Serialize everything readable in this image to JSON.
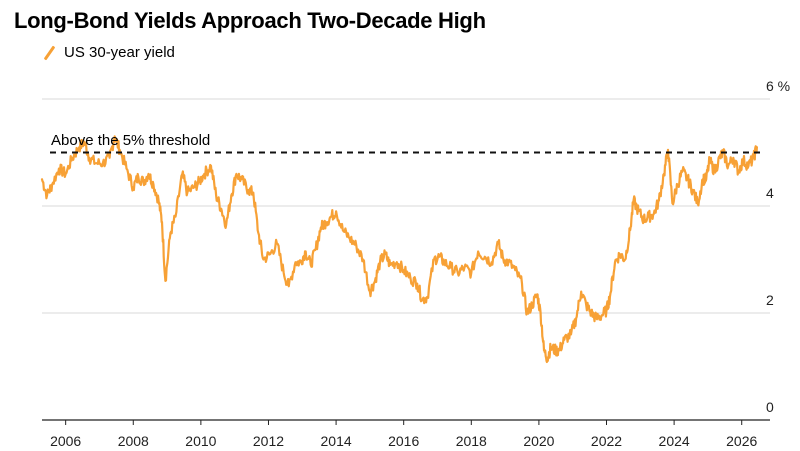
{
  "title": "Long-Bond Yields Approach Two-Decade High",
  "legend": {
    "label": "US 30-year yield",
    "color": "#f7a136"
  },
  "annotation": "Above the 5% threshold",
  "chart_data": {
    "type": "line",
    "title": "Long-Bond Yields Approach Two-Decade High",
    "xlabel": "",
    "ylabel": "",
    "unit": "%",
    "xlim": [
      2005.3,
      2026.6
    ],
    "ylim": [
      0,
      6
    ],
    "x_ticks": [
      "2006",
      "2008",
      "2010",
      "2012",
      "2014",
      "2016",
      "2018",
      "2020",
      "2022",
      "2024",
      "2026"
    ],
    "x_tick_values": [
      2006,
      2008,
      2010,
      2012,
      2014,
      2016,
      2018,
      2020,
      2022,
      2024,
      2026
    ],
    "y_ticks": [
      "6 %",
      "4",
      "2",
      "0"
    ],
    "y_tick_values": [
      6,
      4,
      2,
      0
    ],
    "grid": "horizontal",
    "reference_line": {
      "y": 5,
      "style": "dashed",
      "label": "Above the 5% threshold"
    },
    "series": [
      {
        "name": "US 30-year yield",
        "color": "#f7a136",
        "points": [
          [
            2005.3,
            4.5
          ],
          [
            2005.45,
            4.2
          ],
          [
            2005.6,
            4.4
          ],
          [
            2005.8,
            4.7
          ],
          [
            2006.0,
            4.6
          ],
          [
            2006.2,
            4.9
          ],
          [
            2006.4,
            5.1
          ],
          [
            2006.55,
            5.2
          ],
          [
            2006.7,
            4.9
          ],
          [
            2006.9,
            4.8
          ],
          [
            2007.1,
            4.8
          ],
          [
            2007.3,
            4.9
          ],
          [
            2007.45,
            5.3
          ],
          [
            2007.6,
            5.05
          ],
          [
            2007.8,
            4.7
          ],
          [
            2008.0,
            4.35
          ],
          [
            2008.15,
            4.55
          ],
          [
            2008.3,
            4.45
          ],
          [
            2008.45,
            4.6
          ],
          [
            2008.6,
            4.4
          ],
          [
            2008.75,
            4.1
          ],
          [
            2008.85,
            3.7
          ],
          [
            2008.95,
            2.6
          ],
          [
            2009.1,
            3.5
          ],
          [
            2009.25,
            3.8
          ],
          [
            2009.45,
            4.6
          ],
          [
            2009.6,
            4.25
          ],
          [
            2009.8,
            4.35
          ],
          [
            2009.95,
            4.45
          ],
          [
            2010.1,
            4.6
          ],
          [
            2010.3,
            4.75
          ],
          [
            2010.45,
            4.2
          ],
          [
            2010.6,
            3.95
          ],
          [
            2010.75,
            3.65
          ],
          [
            2010.9,
            4.2
          ],
          [
            2011.05,
            4.6
          ],
          [
            2011.2,
            4.5
          ],
          [
            2011.4,
            4.3
          ],
          [
            2011.55,
            4.25
          ],
          [
            2011.7,
            3.5
          ],
          [
            2011.85,
            3.0
          ],
          [
            2012.05,
            3.1
          ],
          [
            2012.25,
            3.3
          ],
          [
            2012.45,
            2.75
          ],
          [
            2012.6,
            2.5
          ],
          [
            2012.8,
            2.95
          ],
          [
            2012.95,
            2.95
          ],
          [
            2013.1,
            3.15
          ],
          [
            2013.25,
            2.9
          ],
          [
            2013.4,
            3.2
          ],
          [
            2013.55,
            3.6
          ],
          [
            2013.7,
            3.7
          ],
          [
            2013.85,
            3.8
          ],
          [
            2014.0,
            3.9
          ],
          [
            2014.2,
            3.55
          ],
          [
            2014.4,
            3.4
          ],
          [
            2014.6,
            3.25
          ],
          [
            2014.8,
            3.0
          ],
          [
            2015.0,
            2.4
          ],
          [
            2015.15,
            2.6
          ],
          [
            2015.3,
            2.95
          ],
          [
            2015.45,
            3.1
          ],
          [
            2015.6,
            2.9
          ],
          [
            2015.8,
            2.95
          ],
          [
            2016.0,
            2.8
          ],
          [
            2016.2,
            2.65
          ],
          [
            2016.4,
            2.55
          ],
          [
            2016.55,
            2.25
          ],
          [
            2016.7,
            2.3
          ],
          [
            2016.9,
            3.0
          ],
          [
            2017.05,
            3.05
          ],
          [
            2017.2,
            2.95
          ],
          [
            2017.4,
            2.85
          ],
          [
            2017.6,
            2.75
          ],
          [
            2017.8,
            2.85
          ],
          [
            2018.0,
            2.75
          ],
          [
            2018.2,
            3.15
          ],
          [
            2018.4,
            3.05
          ],
          [
            2018.6,
            2.95
          ],
          [
            2018.8,
            3.3
          ],
          [
            2018.95,
            3.0
          ],
          [
            2019.1,
            2.95
          ],
          [
            2019.3,
            2.8
          ],
          [
            2019.5,
            2.55
          ],
          [
            2019.65,
            2.0
          ],
          [
            2019.8,
            2.15
          ],
          [
            2019.95,
            2.35
          ],
          [
            2020.05,
            2.0
          ],
          [
            2020.15,
            1.3
          ],
          [
            2020.25,
            1.15
          ],
          [
            2020.35,
            1.35
          ],
          [
            2020.5,
            1.3
          ],
          [
            2020.6,
            1.3
          ],
          [
            2020.75,
            1.5
          ],
          [
            2020.95,
            1.6
          ],
          [
            2021.1,
            1.9
          ],
          [
            2021.25,
            2.4
          ],
          [
            2021.4,
            2.15
          ],
          [
            2021.55,
            2.0
          ],
          [
            2021.7,
            1.9
          ],
          [
            2021.85,
            1.95
          ],
          [
            2022.0,
            2.05
          ],
          [
            2022.1,
            2.3
          ],
          [
            2022.25,
            2.95
          ],
          [
            2022.4,
            3.1
          ],
          [
            2022.55,
            3.0
          ],
          [
            2022.7,
            3.55
          ],
          [
            2022.8,
            4.1
          ],
          [
            2022.95,
            3.9
          ],
          [
            2023.1,
            3.75
          ],
          [
            2023.25,
            3.8
          ],
          [
            2023.4,
            3.85
          ],
          [
            2023.55,
            4.1
          ],
          [
            2023.7,
            4.6
          ],
          [
            2023.82,
            5.05
          ],
          [
            2023.95,
            4.05
          ],
          [
            2024.1,
            4.4
          ],
          [
            2024.25,
            4.65
          ],
          [
            2024.4,
            4.5
          ],
          [
            2024.55,
            4.3
          ],
          [
            2024.7,
            4.05
          ],
          [
            2024.85,
            4.5
          ],
          [
            2024.95,
            4.5
          ],
          [
            2025.05,
            4.85
          ],
          [
            2025.2,
            4.65
          ],
          [
            2025.35,
            4.9
          ],
          [
            2025.45,
            5.0
          ],
          [
            2025.6,
            4.75
          ],
          [
            2025.75,
            4.9
          ],
          [
            2025.9,
            4.65
          ],
          [
            2026.05,
            4.85
          ],
          [
            2026.2,
            4.75
          ],
          [
            2026.35,
            4.9
          ],
          [
            2026.45,
            5.1
          ]
        ]
      }
    ]
  }
}
